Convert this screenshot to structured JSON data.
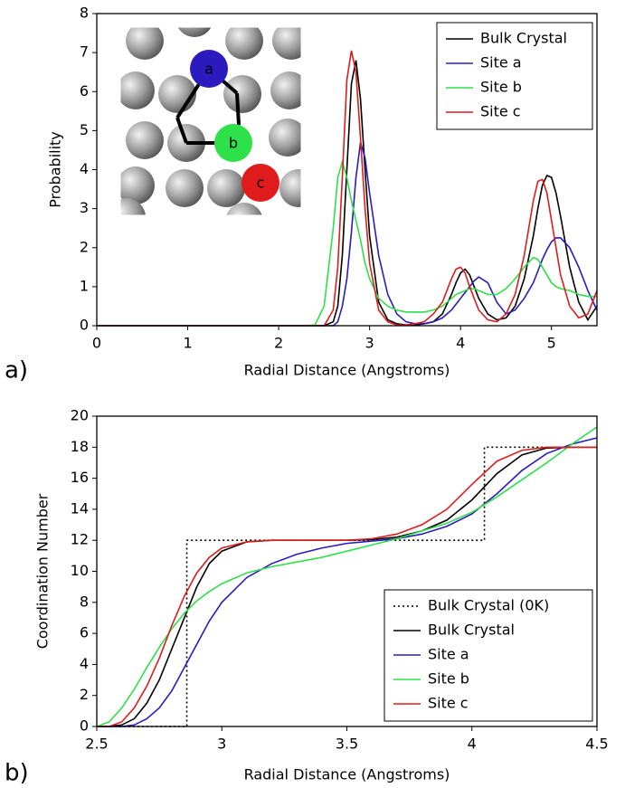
{
  "chart_data": [
    {
      "type": "line",
      "panel_label": "a)",
      "xlabel": "Radial Distance (Angstroms)",
      "ylabel": "Probability",
      "xlim": [
        0,
        5.5
      ],
      "xticks": [
        0,
        1,
        2,
        3,
        4,
        5
      ],
      "ylim": [
        0,
        8
      ],
      "yticks": [
        0,
        1,
        2,
        3,
        4,
        5,
        6,
        7,
        8
      ],
      "legend": "upper right",
      "inset_labels": [
        "a",
        "b",
        "c"
      ],
      "x": [
        0,
        2.3,
        2.4,
        2.5,
        2.6,
        2.65,
        2.7,
        2.75,
        2.8,
        2.85,
        2.9,
        2.95,
        3.0,
        3.1,
        3.2,
        3.3,
        3.4,
        3.5,
        3.6,
        3.7,
        3.8,
        3.9,
        3.95,
        4.0,
        4.05,
        4.1,
        4.15,
        4.2,
        4.3,
        4.4,
        4.5,
        4.6,
        4.7,
        4.8,
        4.85,
        4.9,
        4.95,
        5.0,
        5.05,
        5.1,
        5.2,
        5.3,
        5.4,
        5.5
      ],
      "series": [
        {
          "name": "Bulk Crystal",
          "color": "#000000",
          "values": [
            0,
            0,
            0,
            0,
            0.1,
            0.5,
            1.8,
            4.0,
            6.2,
            6.8,
            5.8,
            4.0,
            2.3,
            0.6,
            0.15,
            0.05,
            0.02,
            0.02,
            0.05,
            0.1,
            0.3,
            0.8,
            1.1,
            1.35,
            1.45,
            1.3,
            1.0,
            0.7,
            0.3,
            0.15,
            0.2,
            0.5,
            1.2,
            2.3,
            3.0,
            3.6,
            3.85,
            3.8,
            3.4,
            2.8,
            1.5,
            0.6,
            0.15,
            0.5
          ]
        },
        {
          "name": "Site a",
          "color": "#2b1bbf",
          "values": [
            0,
            0,
            0,
            0,
            0,
            0.1,
            0.5,
            1.2,
            2.4,
            3.8,
            4.7,
            4.3,
            3.4,
            1.8,
            0.8,
            0.3,
            0.1,
            0.05,
            0.05,
            0.1,
            0.2,
            0.4,
            0.55,
            0.7,
            0.85,
            1.0,
            1.15,
            1.25,
            1.1,
            0.6,
            0.3,
            0.4,
            0.7,
            1.1,
            1.4,
            1.7,
            1.95,
            2.15,
            2.25,
            2.25,
            2.0,
            1.5,
            0.9,
            0.4
          ]
        },
        {
          "name": "Site b",
          "color": "#2ee04a",
          "values": [
            0,
            0,
            0.02,
            0.5,
            2.5,
            3.8,
            4.2,
            3.8,
            3.2,
            2.7,
            2.2,
            1.6,
            1.2,
            0.7,
            0.5,
            0.4,
            0.35,
            0.35,
            0.35,
            0.4,
            0.5,
            0.7,
            0.8,
            0.85,
            0.9,
            0.95,
            0.95,
            0.9,
            0.8,
            0.8,
            0.95,
            1.2,
            1.5,
            1.75,
            1.7,
            1.5,
            1.3,
            1.1,
            1.0,
            0.95,
            0.9,
            0.8,
            0.75,
            0.75
          ]
        },
        {
          "name": "Site c",
          "color": "#e01b1b",
          "values": [
            0,
            0,
            0,
            0,
            0.4,
            1.5,
            3.8,
            6.3,
            7.05,
            6.5,
            4.8,
            3.0,
            1.6,
            0.4,
            0.1,
            0.02,
            0.02,
            0.05,
            0.1,
            0.3,
            0.6,
            1.2,
            1.45,
            1.5,
            1.35,
            1.0,
            0.7,
            0.4,
            0.15,
            0.1,
            0.3,
            0.8,
            1.8,
            3.2,
            3.7,
            3.75,
            3.4,
            2.7,
            2.0,
            1.3,
            0.5,
            0.2,
            0.3,
            0.9
          ]
        }
      ]
    },
    {
      "type": "line",
      "panel_label": "b)",
      "xlabel": "Radial Distance (Angstroms)",
      "ylabel": "Coordination Number",
      "xlim": [
        2.5,
        4.5
      ],
      "xticks": [
        2.5,
        3,
        3.5,
        4,
        4.5
      ],
      "ylim": [
        0,
        20
      ],
      "yticks": [
        0,
        2,
        4,
        6,
        8,
        10,
        12,
        14,
        16,
        18,
        20
      ],
      "legend": "lower right",
      "x": [
        2.5,
        2.55,
        2.6,
        2.65,
        2.7,
        2.75,
        2.8,
        2.85,
        2.9,
        2.95,
        3.0,
        3.1,
        3.2,
        3.3,
        3.4,
        3.5,
        3.6,
        3.7,
        3.8,
        3.9,
        4.0,
        4.1,
        4.2,
        4.3,
        4.4,
        4.5
      ],
      "series": [
        {
          "name": "Bulk Crystal (0K)",
          "color": "#000000",
          "style": "dotted",
          "x": [
            2.5,
            2.86,
            2.86,
            4.05,
            4.05,
            4.5
          ],
          "values": [
            0,
            0,
            12,
            12,
            18,
            18
          ]
        },
        {
          "name": "Bulk Crystal",
          "color": "#000000",
          "values": [
            0,
            0,
            0.1,
            0.5,
            1.5,
            3,
            5,
            7,
            9,
            10.5,
            11.3,
            11.9,
            12,
            12,
            12,
            12,
            12.05,
            12.2,
            12.6,
            13.3,
            14.6,
            16.3,
            17.5,
            17.95,
            18,
            18
          ]
        },
        {
          "name": "Site a",
          "color": "#2b1bbf",
          "values": [
            0,
            0,
            0,
            0.1,
            0.5,
            1.2,
            2.3,
            3.8,
            5.3,
            6.8,
            8,
            9.6,
            10.5,
            11.1,
            11.5,
            11.8,
            11.95,
            12.1,
            12.4,
            12.9,
            13.7,
            15,
            16.5,
            17.6,
            18.2,
            18.6
          ]
        },
        {
          "name": "Site b",
          "color": "#2ee04a",
          "values": [
            0,
            0.3,
            1.2,
            2.4,
            3.8,
            5.1,
            6.3,
            7.3,
            8.1,
            8.7,
            9.2,
            9.9,
            10.3,
            10.6,
            10.9,
            11.3,
            11.7,
            12.1,
            12.6,
            13.1,
            13.8,
            14.8,
            15.9,
            17.0,
            18.2,
            19.3
          ]
        },
        {
          "name": "Site c",
          "color": "#e01b1b",
          "values": [
            0,
            0,
            0.3,
            1.2,
            2.6,
            4.4,
            6.5,
            8.4,
            9.9,
            10.9,
            11.5,
            11.9,
            12,
            12,
            12,
            12,
            12.1,
            12.4,
            13,
            14,
            15.6,
            17.1,
            17.8,
            18,
            18,
            18
          ]
        }
      ]
    }
  ]
}
